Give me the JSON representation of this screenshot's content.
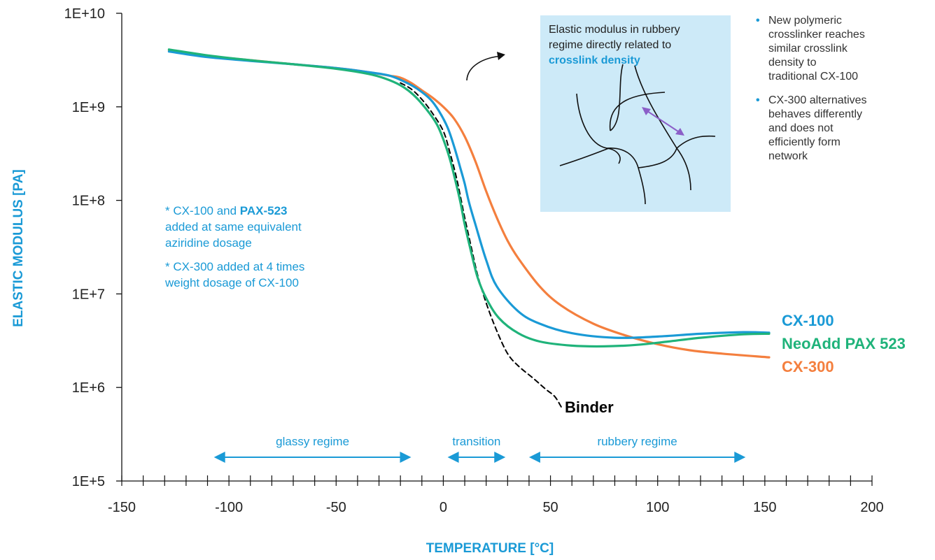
{
  "chart_data": {
    "type": "line",
    "title": "",
    "xlabel": "TEMPERATURE [°C]",
    "ylabel": "ELASTIC MODULUS [PA]",
    "xlim": [
      -150,
      200
    ],
    "ylim": [
      100000,
      10000000000
    ],
    "yscale": "log",
    "x_ticks": [
      "-150",
      "-100",
      "-50",
      "0",
      "50",
      "100",
      "150",
      "200"
    ],
    "y_ticks": [
      "1E+5",
      "1E+6",
      "1E+7",
      "1E+8",
      "1E+9",
      "1E+10"
    ],
    "grid": false,
    "series": [
      {
        "name": "CX-100",
        "color": "#1a9ad6",
        "style": "solid",
        "x": [
          -128,
          -110,
          -90,
          -70,
          -50,
          -35,
          -25,
          -18,
          -12,
          -6,
          -2,
          2,
          5,
          8,
          10,
          12,
          15,
          20,
          25,
          35,
          45,
          60,
          80,
          100,
          120,
          140,
          152
        ],
        "y": [
          3900000000,
          3400000000,
          3100000000,
          2850000000,
          2600000000,
          2350000000,
          2150000000,
          1850000000,
          1550000000,
          1200000000,
          900000000,
          600000000,
          380000000,
          220000000,
          150000000,
          95000000,
          55000000,
          23000000,
          12000000,
          6500000,
          4800000,
          3800000,
          3400000,
          3500000,
          3750000,
          3900000,
          3850000
        ]
      },
      {
        "name": "NeoAdd PAX 523",
        "color": "#1fb37a",
        "style": "solid",
        "x": [
          -128,
          -110,
          -90,
          -70,
          -50,
          -35,
          -27,
          -20,
          -14,
          -8,
          -3,
          0,
          3,
          6,
          8,
          10,
          13,
          16,
          20,
          26,
          35,
          45,
          60,
          75,
          90,
          105,
          120,
          140,
          152
        ],
        "y": [
          4100000000,
          3550000000,
          3150000000,
          2850000000,
          2550000000,
          2250000000,
          2000000000,
          1700000000,
          1350000000,
          950000000,
          650000000,
          450000000,
          280000000,
          150000000,
          95000000,
          55000000,
          28000000,
          15000000,
          9000000,
          5500000,
          3800000,
          3100000,
          2800000,
          2750000,
          2850000,
          3100000,
          3400000,
          3700000,
          3750000
        ]
      },
      {
        "name": "CX-300",
        "color": "#f47f3e",
        "style": "solid",
        "x": [
          -128,
          -110,
          -90,
          -70,
          -50,
          -35,
          -25,
          -20,
          -15,
          -10,
          -5,
          0,
          5,
          10,
          15,
          20,
          25,
          30,
          35,
          45,
          55,
          70,
          85,
          100,
          115,
          130,
          152
        ],
        "y": [
          4000000000,
          3500000000,
          3150000000,
          2850000000,
          2600000000,
          2350000000,
          2150000000,
          2050000000,
          1800000000,
          1500000000,
          1250000000,
          1000000000,
          750000000,
          480000000,
          260000000,
          125000000,
          65000000,
          37000000,
          24000000,
          12000000,
          7500000,
          4800000,
          3600000,
          2900000,
          2500000,
          2300000,
          2100000
        ]
      },
      {
        "name": "Binder",
        "color": "#000000",
        "style": "dashed",
        "x": [
          -20,
          -15,
          -10,
          -5,
          0,
          3,
          6,
          8,
          10,
          13,
          16,
          20,
          25,
          30,
          35,
          42,
          48,
          52,
          55
        ],
        "y": [
          1800000000,
          1550000000,
          1200000000,
          850000000,
          550000000,
          330000000,
          180000000,
          110000000,
          65000000,
          32000000,
          16000000,
          8000000,
          4000000,
          2300000,
          1700000,
          1250000,
          950000,
          800000,
          620000
        ]
      }
    ],
    "regimes": [
      {
        "label": "glassy regime",
        "from": -107,
        "to": -15
      },
      {
        "label": "transition",
        "from": 2,
        "to": 29
      },
      {
        "label": "rubbery regime",
        "from": 40,
        "to": 141
      }
    ]
  },
  "notes": {
    "line1_prefix": "* CX-100 and ",
    "line1_bold": "PAX-523",
    "line2": "added at same equivalent",
    "line3": "aziridine dosage",
    "line4": "* CX-300 added at 4 times",
    "line5": "weight dosage of CX-100"
  },
  "infobox": {
    "text_line1": "Elastic modulus in rubbery",
    "text_line2": "regime directly related to",
    "text_bold": "crosslink density"
  },
  "bullets": {
    "b1_l1": "New polymeric",
    "b1_l2": "crosslinker reaches",
    "b1_l3": "similar crosslink",
    "b1_l4": "density to",
    "b1_l5": "traditional CX-100",
    "b2_l1": "CX-300 alternatives",
    "b2_l2": "behaves differently",
    "b2_l3": "and does not",
    "b2_l4": "efficiently form",
    "b2_l5": "network",
    "bullet_char": "•"
  },
  "colors": {
    "accent_blue": "#1a9ad6",
    "green": "#1fb37a",
    "orange": "#f47f3e",
    "box_bg": "#cdeaf8",
    "arrow_purple": "#8b5fc8"
  }
}
